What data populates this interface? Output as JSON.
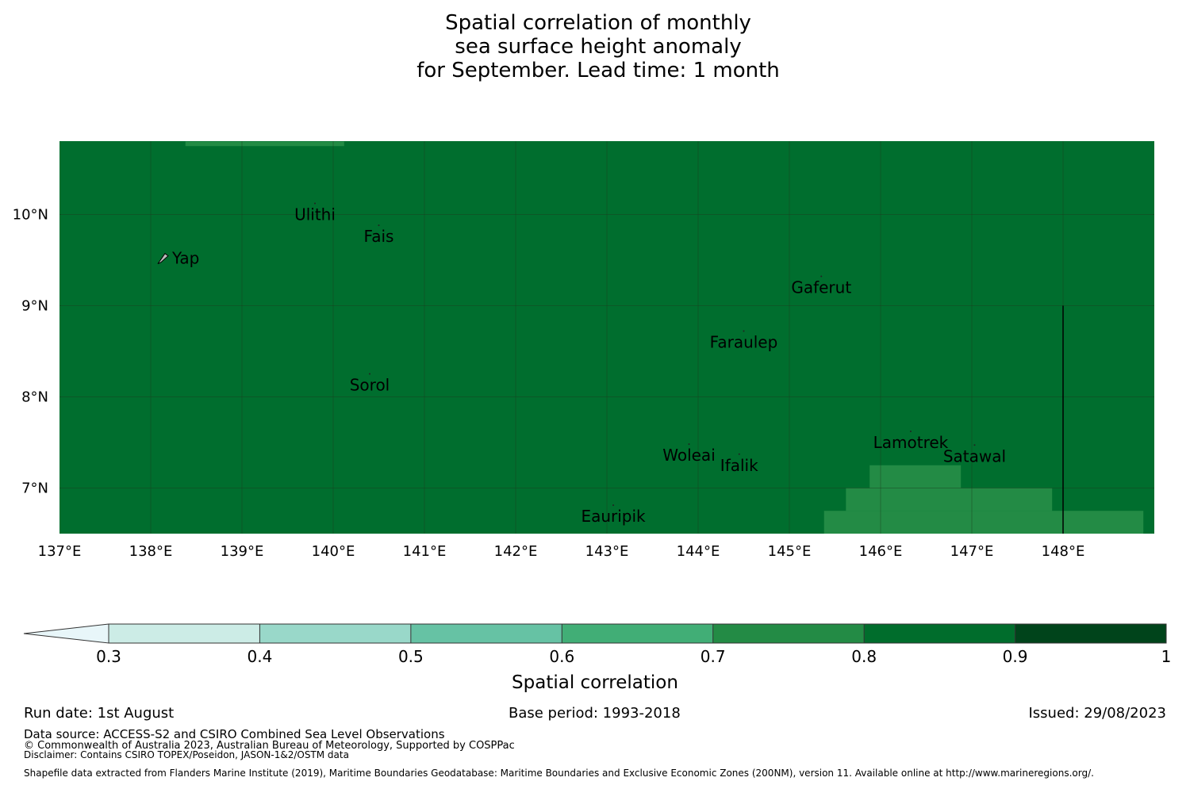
{
  "title": {
    "line1": "Spatial correlation of monthly",
    "line2": "sea surface height anomaly",
    "line3": "for September. Lead time: 1 month"
  },
  "map": {
    "background_color": "#006e2e",
    "lon_range": [
      137,
      149
    ],
    "lat_range": [
      6.5,
      10.8
    ],
    "lon_ticks": [
      137,
      138,
      139,
      140,
      141,
      142,
      143,
      144,
      145,
      146,
      147,
      148
    ],
    "lon_labels": [
      "137°E",
      "138°E",
      "139°E",
      "140°E",
      "141°E",
      "142°E",
      "143°E",
      "144°E",
      "145°E",
      "146°E",
      "147°E",
      "148°E"
    ],
    "lat_ticks": [
      10,
      9,
      8,
      7
    ],
    "lat_labels": [
      "10°N",
      "9°N",
      "8°N",
      "7°N"
    ],
    "lower_correlation_cells": [
      {
        "lon": [
          138.38,
          140.12
        ],
        "lat": [
          10.75,
          10.8
        ],
        "color": "#238b45"
      },
      {
        "lon": [
          145.88,
          146.88
        ],
        "lat": [
          7.0,
          7.25
        ],
        "color": "#238b45"
      },
      {
        "lon": [
          145.62,
          147.88
        ],
        "lat": [
          6.75,
          7.0
        ],
        "color": "#238b45"
      },
      {
        "lon": [
          145.38,
          148.88
        ],
        "lat": [
          6.5,
          6.75
        ],
        "color": "#238b45"
      }
    ],
    "boundary_line": {
      "lon": 148,
      "lat": [
        6.5,
        9.0
      ]
    },
    "islands": [
      {
        "name": "Yap",
        "lon": 138.13,
        "lat": 9.52,
        "label": "Yap"
      },
      {
        "name": "Ulithi",
        "lon": 139.8,
        "lat": 10.0,
        "label": "Ulithi"
      },
      {
        "name": "Fais",
        "lon": 140.5,
        "lat": 9.76,
        "label": "Fais"
      },
      {
        "name": "Gaferut",
        "lon": 145.35,
        "lat": 9.2,
        "label": "Gaferut"
      },
      {
        "name": "Faraulep",
        "lon": 144.5,
        "lat": 8.6,
        "label": "Faraulep"
      },
      {
        "name": "Sorol",
        "lon": 140.4,
        "lat": 8.13,
        "label": "Sorol"
      },
      {
        "name": "Woleai",
        "lon": 143.9,
        "lat": 7.36,
        "label": "Woleai"
      },
      {
        "name": "Ifalik",
        "lon": 144.45,
        "lat": 7.25,
        "label": "Ifalik"
      },
      {
        "name": "Lamotrek",
        "lon": 146.33,
        "lat": 7.5,
        "label": "Lamotrek"
      },
      {
        "name": "Satawal",
        "lon": 147.03,
        "lat": 7.35,
        "label": "Satawal"
      },
      {
        "name": "Eauripik",
        "lon": 143.07,
        "lat": 6.69,
        "label": "Eauripik"
      }
    ]
  },
  "colorbar": {
    "label": "Spatial correlation",
    "ticks": [
      "0.3",
      "0.4",
      "0.5",
      "0.6",
      "0.7",
      "0.8",
      "0.9",
      "1"
    ],
    "under_color": "#e8f6f9",
    "colors": [
      "#ccece6",
      "#99d8c9",
      "#66c2a4",
      "#41ae76",
      "#238b45",
      "#006d2c",
      "#00441b"
    ]
  },
  "footer": {
    "run_date": "Run date: 1st August",
    "base_period": "Base period: 1993-2018",
    "issued": "Issued: 29/08/2023",
    "data_source": "Data source: ACCESS-S2 and CSIRO Combined Sea Level Observations",
    "copyright": "© Commonwealth of Australia 2023, Australian Bureau of Meteorology, Supported by COSPPac",
    "disclaimer": "Disclaimer: Contains CSIRO TOPEX/Poseidon, JASON-1&2/OSTM data",
    "shapefile": "Shapefile data extracted from Flanders Marine Institute (2019), Maritime Boundaries Geodatabase: Maritime Boundaries and Exclusive Economic Zones (200NM), version 11. Available online at http://www.marineregions.org/."
  }
}
